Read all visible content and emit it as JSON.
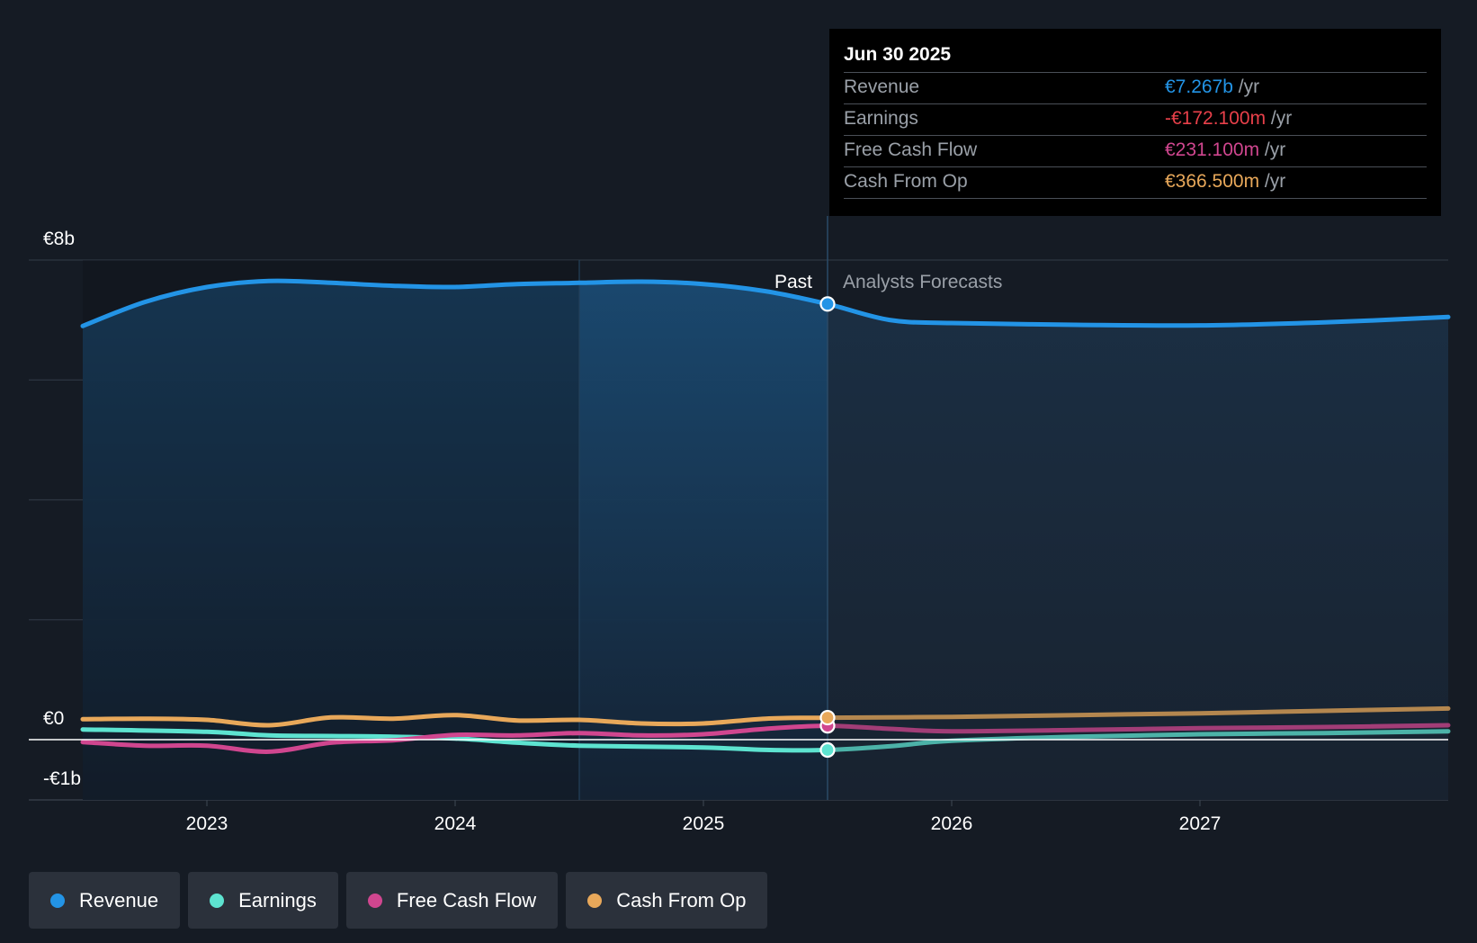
{
  "chart_data": {
    "type": "line",
    "y_unit": "€ billions",
    "ylim": [
      -1,
      8
    ],
    "y_ticks": [
      {
        "value": 8,
        "label": "€8b"
      },
      {
        "value": 0,
        "label": "€0"
      },
      {
        "value": -1,
        "label": "-€1b"
      }
    ],
    "x_ticks": [
      {
        "value": 2023,
        "label": "2023"
      },
      {
        "value": 2024,
        "label": "2024"
      },
      {
        "value": 2025,
        "label": "2025"
      },
      {
        "value": 2026,
        "label": "2026"
      },
      {
        "value": 2027,
        "label": "2027"
      }
    ],
    "xlim": [
      2022.26,
      2028.0
    ],
    "past_label": "Past",
    "forecast_label": "Analysts Forecasts",
    "divider_x": 2025.5,
    "highlight_start_x": 2024.5,
    "series": [
      {
        "name": "Revenue",
        "key": "revenue",
        "color": "#2394e6",
        "points": [
          [
            2022.5,
            6.9
          ],
          [
            2022.75,
            7.3
          ],
          [
            2023.0,
            7.55
          ],
          [
            2023.25,
            7.65
          ],
          [
            2023.5,
            7.62
          ],
          [
            2023.75,
            7.57
          ],
          [
            2024.0,
            7.55
          ],
          [
            2024.25,
            7.6
          ],
          [
            2024.5,
            7.62
          ],
          [
            2024.75,
            7.64
          ],
          [
            2025.0,
            7.6
          ],
          [
            2025.25,
            7.48
          ],
          [
            2025.5,
            7.267
          ],
          [
            2025.75,
            7.0
          ],
          [
            2026.0,
            6.95
          ],
          [
            2026.5,
            6.92
          ],
          [
            2027.0,
            6.91
          ],
          [
            2027.5,
            6.96
          ],
          [
            2028.0,
            7.05
          ]
        ]
      },
      {
        "name": "Earnings",
        "key": "earnings",
        "color": "#5de3d0",
        "points": [
          [
            2022.5,
            0.17
          ],
          [
            2023.0,
            0.13
          ],
          [
            2023.25,
            0.07
          ],
          [
            2023.5,
            0.06
          ],
          [
            2023.75,
            0.05
          ],
          [
            2024.0,
            0.02
          ],
          [
            2024.25,
            -0.05
          ],
          [
            2024.5,
            -0.1
          ],
          [
            2025.0,
            -0.13
          ],
          [
            2025.25,
            -0.17
          ],
          [
            2025.5,
            -0.172
          ],
          [
            2025.75,
            -0.11
          ],
          [
            2026.0,
            -0.02
          ],
          [
            2026.5,
            0.05
          ],
          [
            2027.0,
            0.09
          ],
          [
            2027.5,
            0.11
          ],
          [
            2028.0,
            0.14
          ]
        ]
      },
      {
        "name": "Free Cash Flow",
        "key": "fcf",
        "color": "#d0468f",
        "points": [
          [
            2022.5,
            -0.04
          ],
          [
            2022.75,
            -0.1
          ],
          [
            2023.0,
            -0.1
          ],
          [
            2023.25,
            -0.2
          ],
          [
            2023.5,
            -0.05
          ],
          [
            2023.75,
            -0.01
          ],
          [
            2024.0,
            0.08
          ],
          [
            2024.25,
            0.07
          ],
          [
            2024.5,
            0.11
          ],
          [
            2024.75,
            0.07
          ],
          [
            2025.0,
            0.09
          ],
          [
            2025.25,
            0.18
          ],
          [
            2025.5,
            0.231
          ],
          [
            2025.75,
            0.18
          ],
          [
            2026.0,
            0.14
          ],
          [
            2026.5,
            0.16
          ],
          [
            2027.0,
            0.19
          ],
          [
            2027.5,
            0.21
          ],
          [
            2028.0,
            0.24
          ]
        ]
      },
      {
        "name": "Cash From Op",
        "key": "cfo",
        "color": "#e8a85a",
        "points": [
          [
            2022.5,
            0.34
          ],
          [
            2022.75,
            0.35
          ],
          [
            2023.0,
            0.33
          ],
          [
            2023.25,
            0.24
          ],
          [
            2023.5,
            0.37
          ],
          [
            2023.75,
            0.35
          ],
          [
            2024.0,
            0.41
          ],
          [
            2024.25,
            0.32
          ],
          [
            2024.5,
            0.33
          ],
          [
            2024.75,
            0.27
          ],
          [
            2025.0,
            0.27
          ],
          [
            2025.25,
            0.35
          ],
          [
            2025.5,
            0.3665
          ],
          [
            2026.0,
            0.38
          ],
          [
            2026.5,
            0.41
          ],
          [
            2027.0,
            0.44
          ],
          [
            2027.5,
            0.48
          ],
          [
            2028.0,
            0.52
          ]
        ]
      }
    ]
  },
  "tooltip": {
    "date": "Jun 30 2025",
    "rows": [
      {
        "label": "Revenue",
        "value": "€7.267b",
        "unit": " /yr",
        "color": "#2394e6"
      },
      {
        "label": "Earnings",
        "value": "-€172.100m",
        "unit": " /yr",
        "color": "#e8404a"
      },
      {
        "label": "Free Cash Flow",
        "value": "€231.100m",
        "unit": " /yr",
        "color": "#d0468f"
      },
      {
        "label": "Cash From Op",
        "value": "€366.500m",
        "unit": " /yr",
        "color": "#e8a85a"
      }
    ]
  },
  "legend": [
    {
      "label": "Revenue",
      "color": "#2394e6"
    },
    {
      "label": "Earnings",
      "color": "#5de3d0"
    },
    {
      "label": "Free Cash Flow",
      "color": "#d0468f"
    },
    {
      "label": "Cash From Op",
      "color": "#e8a85a"
    }
  ]
}
